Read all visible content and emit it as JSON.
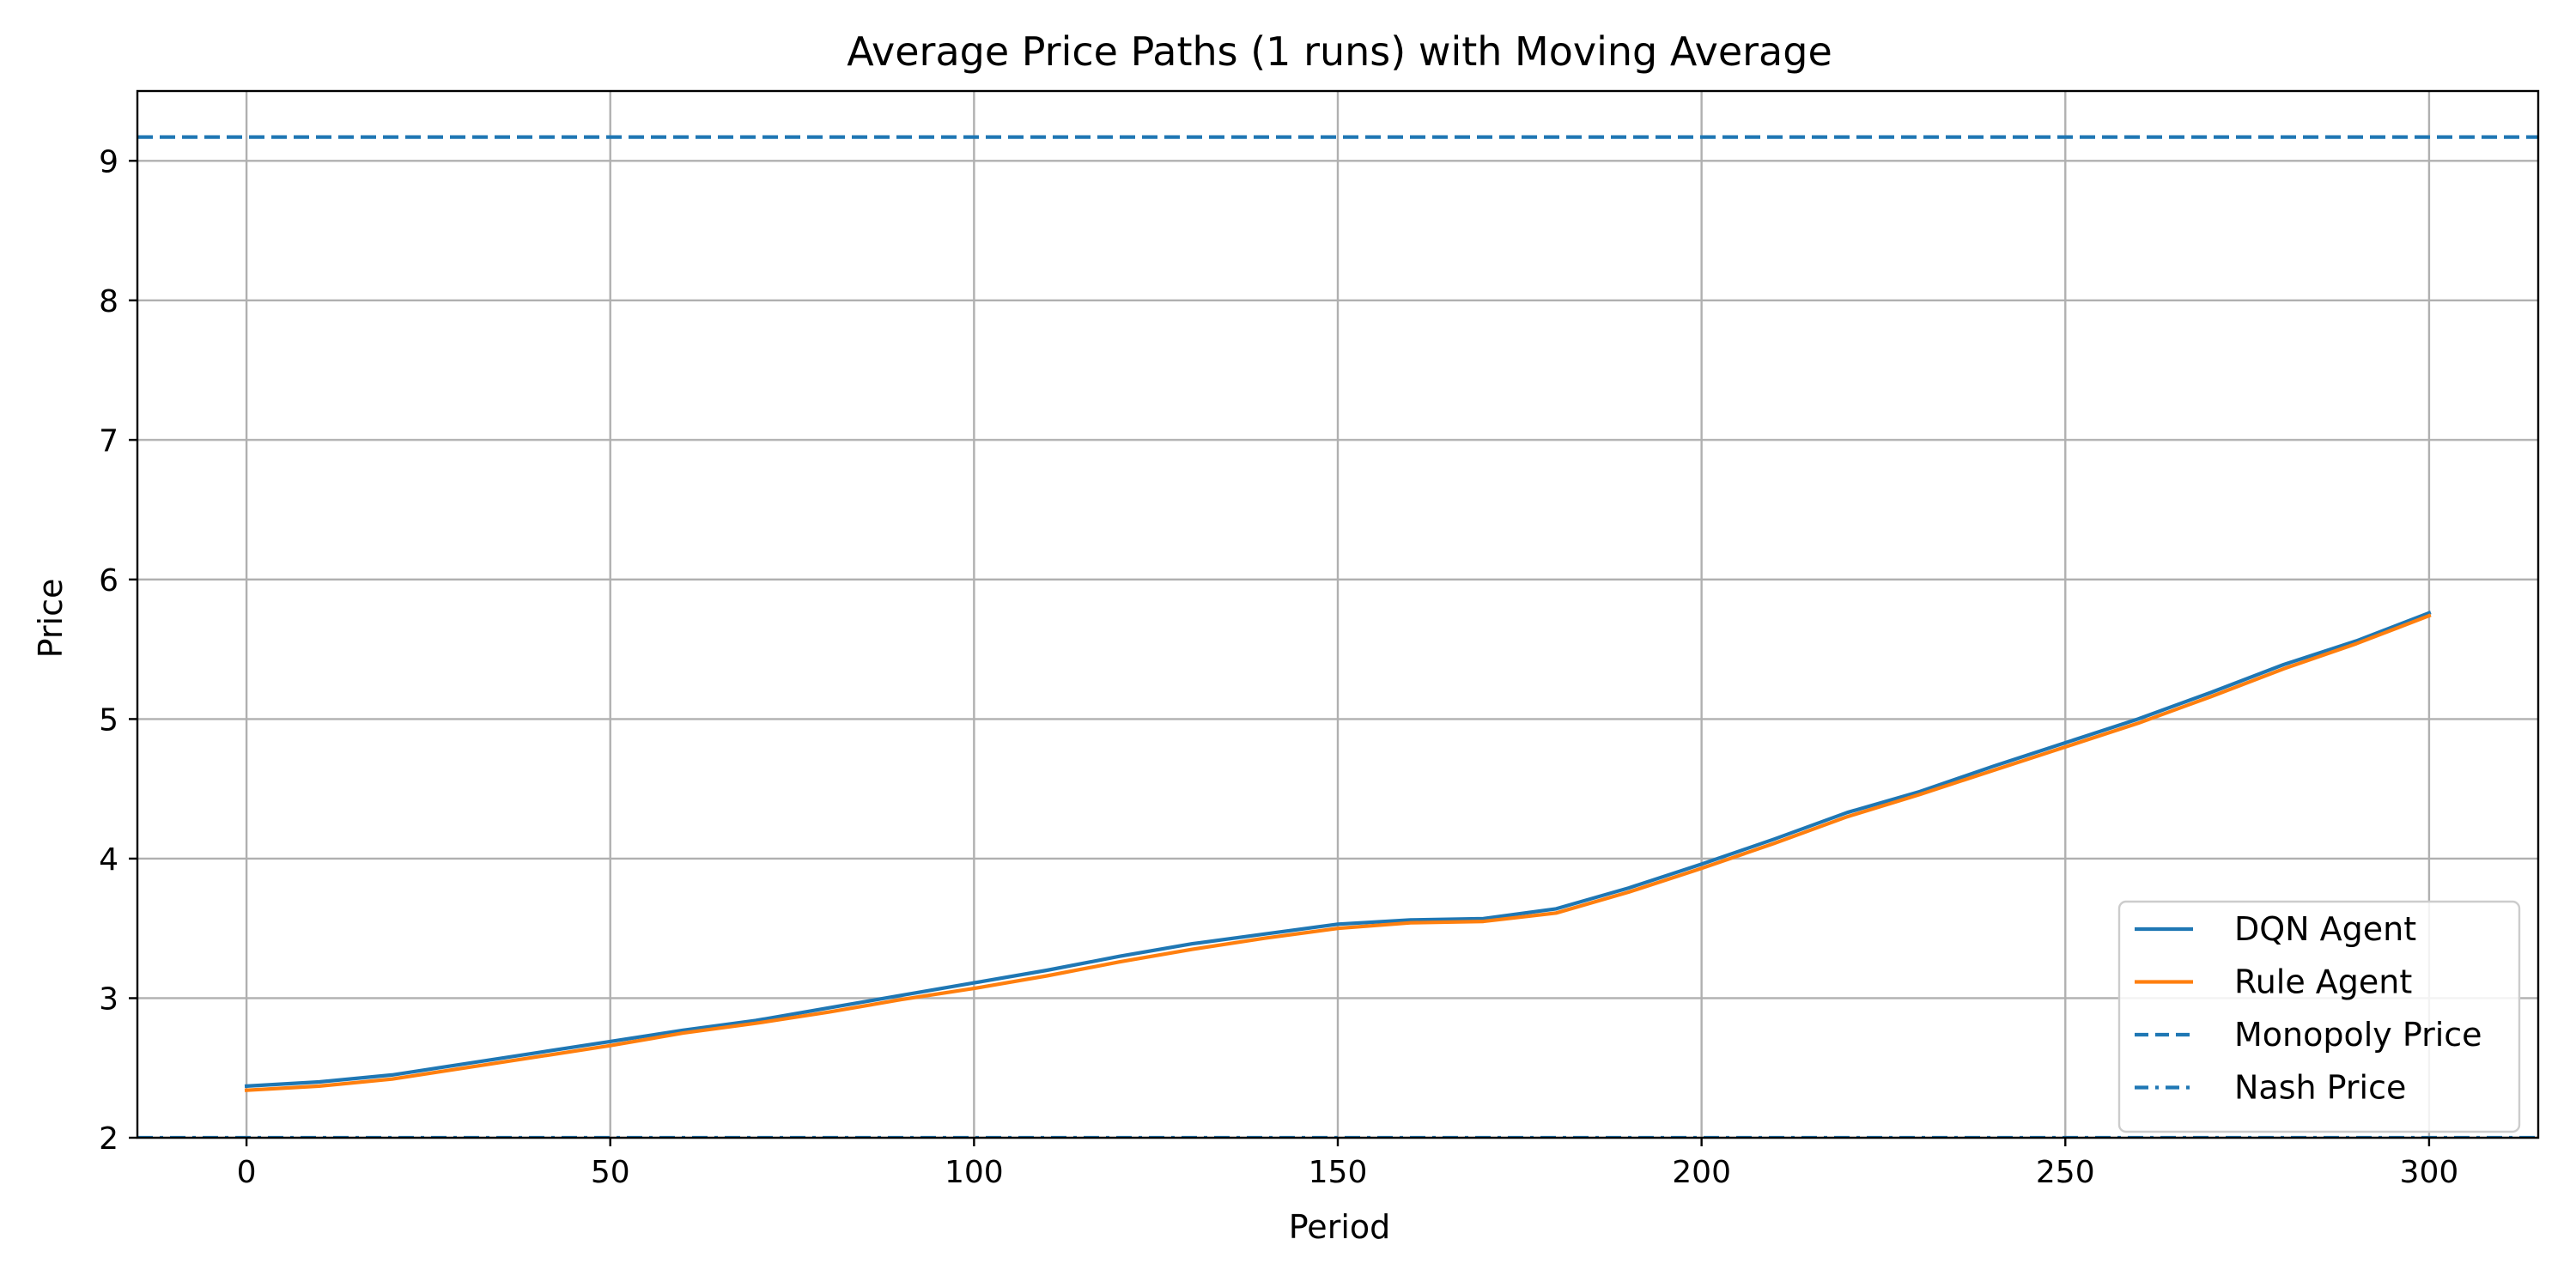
{
  "chart_data": {
    "type": "line",
    "title": "Average Price Paths (1 runs) with Moving Average",
    "xlabel": "Period",
    "ylabel": "Price",
    "xlim": [
      -15,
      315
    ],
    "ylim": [
      2,
      9.5
    ],
    "xticks": [
      0,
      50,
      100,
      150,
      200,
      250,
      300
    ],
    "yticks": [
      2,
      3,
      4,
      5,
      6,
      7,
      8,
      9
    ],
    "grid": true,
    "legend_position": "lower-right",
    "series": [
      {
        "name": "DQN Agent",
        "color": "#1f77b4",
        "style": "solid",
        "x": [
          0,
          10,
          20,
          30,
          40,
          50,
          60,
          70,
          80,
          90,
          100,
          110,
          120,
          130,
          140,
          150,
          160,
          170,
          180,
          190,
          200,
          210,
          220,
          230,
          240,
          250,
          260,
          270,
          280,
          290,
          300
        ],
        "y": [
          2.37,
          2.4,
          2.45,
          2.53,
          2.61,
          2.69,
          2.77,
          2.84,
          2.93,
          3.02,
          3.11,
          3.2,
          3.3,
          3.39,
          3.46,
          3.53,
          3.56,
          3.57,
          3.64,
          3.79,
          3.96,
          4.14,
          4.33,
          4.48,
          4.66,
          4.83,
          5.0,
          5.19,
          5.39,
          5.56,
          5.76
        ]
      },
      {
        "name": "Rule Agent",
        "color": "#ff7f0e",
        "style": "solid",
        "x": [
          0,
          10,
          20,
          30,
          40,
          50,
          60,
          70,
          80,
          90,
          100,
          110,
          120,
          130,
          140,
          150,
          160,
          170,
          180,
          190,
          200,
          210,
          220,
          230,
          240,
          250,
          260,
          270,
          280,
          290,
          300
        ],
        "y": [
          2.34,
          2.37,
          2.42,
          2.5,
          2.58,
          2.66,
          2.75,
          2.82,
          2.9,
          2.99,
          3.07,
          3.16,
          3.26,
          3.35,
          3.43,
          3.5,
          3.54,
          3.55,
          3.61,
          3.76,
          3.93,
          4.11,
          4.3,
          4.46,
          4.63,
          4.8,
          4.97,
          5.16,
          5.36,
          5.54,
          5.74
        ]
      }
    ],
    "reference_lines": [
      {
        "name": "Monopoly Price",
        "value": 9.17,
        "color": "#1f77b4",
        "style": "dashed"
      },
      {
        "name": "Nash Price",
        "value": 2.0,
        "color": "#1f77b4",
        "style": "dashdot"
      }
    ]
  }
}
